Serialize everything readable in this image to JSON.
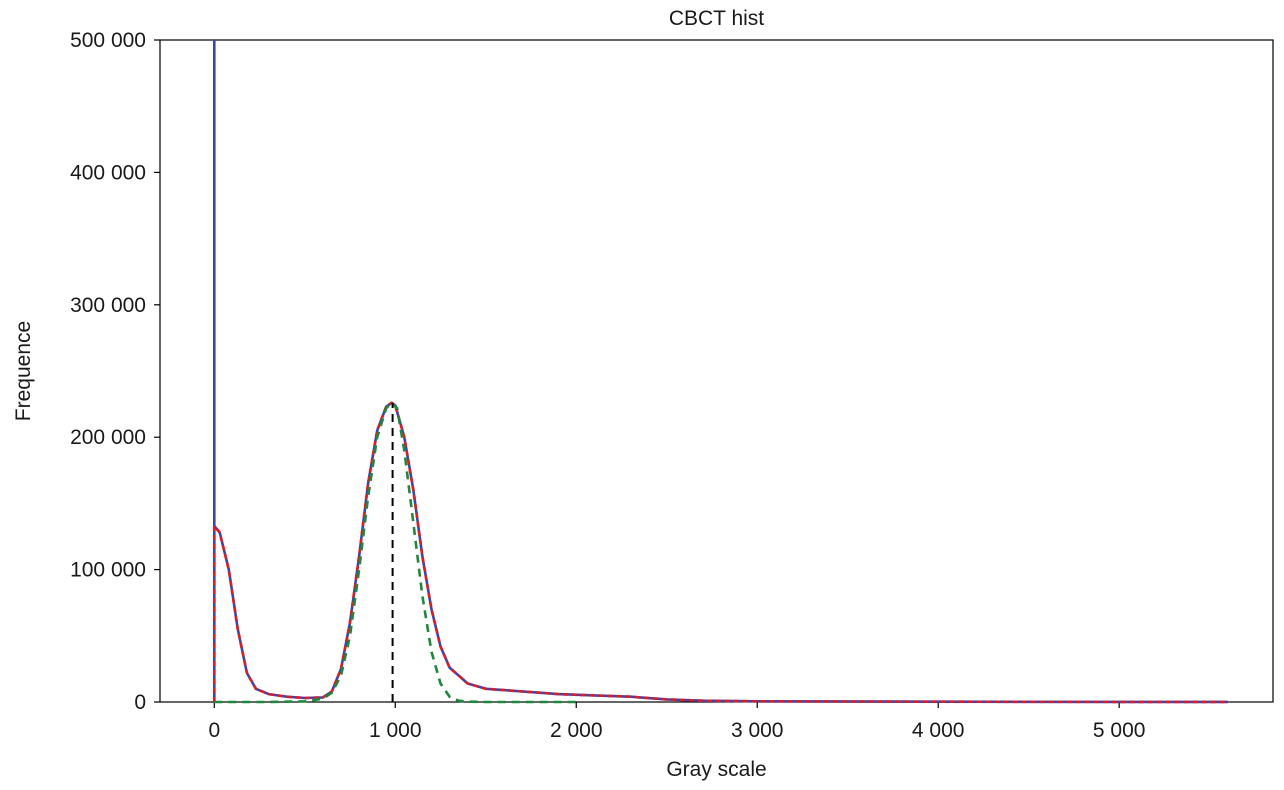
{
  "chart_data": {
    "type": "line",
    "title": "CBCT hist",
    "xlabel": "Gray scale",
    "ylabel": "Frequence",
    "xlim": [
      -300,
      5850
    ],
    "ylim": [
      0,
      500000
    ],
    "x_ticks": [
      0,
      1000,
      2000,
      3000,
      4000,
      5000
    ],
    "x_tick_labels": [
      "0",
      "1 000",
      "2 000",
      "3 000",
      "4 000",
      "5 000"
    ],
    "y_ticks": [
      0,
      100000,
      200000,
      300000,
      400000,
      500000
    ],
    "y_tick_labels": [
      "0",
      "100 000",
      "200 000",
      "300 000",
      "400 000",
      "500 000"
    ],
    "grid": false,
    "legend": "none",
    "series": [
      {
        "color": "#3a45b0",
        "style": "solid",
        "x": [
          0,
          0,
          0,
          30,
          80,
          130,
          180,
          230,
          300,
          400,
          500,
          600,
          650,
          700,
          750,
          800,
          850,
          900,
          950,
          980,
          1000,
          1050,
          1100,
          1150,
          1200,
          1250,
          1300,
          1400,
          1500,
          1700,
          1900,
          2100,
          2300,
          2500,
          2700,
          3000,
          4000,
          5000,
          5600
        ],
        "y": [
          500000,
          0,
          133000,
          128000,
          100000,
          55000,
          22000,
          10000,
          6000,
          4000,
          3000,
          3500,
          8000,
          25000,
          60000,
          110000,
          165000,
          205000,
          223000,
          226000,
          224000,
          200000,
          160000,
          110000,
          70000,
          42000,
          26000,
          14000,
          10000,
          8000,
          6000,
          5000,
          4000,
          2000,
          1000,
          500,
          200,
          100,
          50
        ]
      },
      {
        "color": "#e41a1c",
        "style": "dashed",
        "x": [
          0,
          0,
          30,
          80,
          130,
          180,
          230,
          300,
          400,
          500,
          600,
          650,
          700,
          750,
          800,
          850,
          900,
          950,
          980,
          1000,
          1050,
          1100,
          1150,
          1200,
          1250,
          1300,
          1400,
          1500,
          1700,
          1900,
          2100,
          2300,
          2500,
          2700,
          3000,
          4000,
          5000,
          5600
        ],
        "y": [
          0,
          133000,
          128000,
          100000,
          55000,
          22000,
          10000,
          6000,
          4000,
          3000,
          3500,
          8000,
          25000,
          60000,
          110000,
          165000,
          205000,
          223000,
          226000,
          224000,
          200000,
          160000,
          110000,
          70000,
          42000,
          26000,
          14000,
          10000,
          8000,
          6000,
          5000,
          4000,
          2000,
          1000,
          500,
          200,
          100,
          50
        ]
      },
      {
        "color": "#1b8a3a",
        "style": "dashed",
        "x": [
          0,
          300,
          500,
          600,
          650,
          700,
          750,
          800,
          850,
          900,
          950,
          980,
          1010,
          1050,
          1100,
          1150,
          1200,
          1250,
          1300,
          1350,
          1400,
          1500,
          2000
        ],
        "y": [
          0,
          0,
          500,
          2500,
          7000,
          20000,
          50000,
          100000,
          155000,
          200000,
          222000,
          226000,
          222000,
          190000,
          135000,
          80000,
          38000,
          14000,
          4000,
          1000,
          300,
          0,
          0
        ]
      },
      {
        "color": "#000000",
        "style": "dashed",
        "x": [
          985,
          985
        ],
        "y": [
          0,
          226000
        ]
      }
    ]
  }
}
